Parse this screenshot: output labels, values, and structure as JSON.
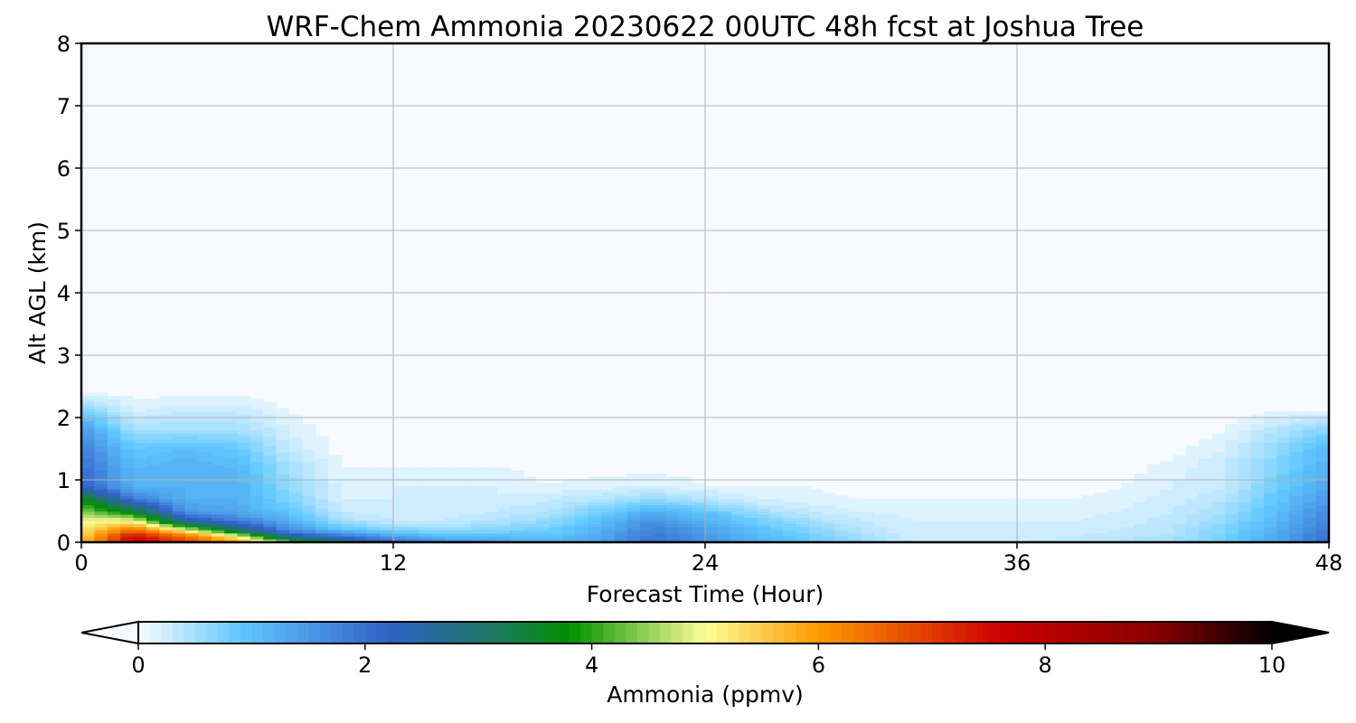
{
  "chart_data": {
    "type": "heatmap",
    "title": "WRF-Chem Ammonia  20230622 00UTC 48h fcst at Joshua Tree",
    "xlabel": "Forecast Time (Hour)",
    "ylabel": "Alt AGL (km)",
    "xlim": [
      0,
      48
    ],
    "ylim": [
      0,
      8
    ],
    "xticks": [
      "0",
      "12",
      "24",
      "36",
      "48"
    ],
    "yticks": [
      "0",
      "1",
      "2",
      "3",
      "4",
      "5",
      "6",
      "7",
      "8"
    ],
    "grid": true,
    "times": [
      0,
      2,
      4,
      6,
      8,
      10,
      12,
      14,
      16,
      18,
      20,
      22,
      24,
      26,
      28,
      30,
      32,
      34,
      36,
      38,
      40,
      42,
      44,
      46,
      48
    ],
    "altitudes": [
      0,
      0.1,
      0.2,
      0.35,
      0.5,
      0.7,
      0.9,
      1.2,
      1.5,
      1.8,
      2.1,
      2.4,
      8
    ],
    "values_by_time": [
      [
        5.6,
        5.4,
        5.2,
        5.0,
        4.5,
        3.8,
        2.2,
        2.0,
        1.8,
        1.5,
        0.8,
        0.1,
        0
      ],
      [
        7.8,
        7.5,
        6.5,
        5.0,
        3.5,
        1.8,
        1.2,
        1.1,
        0.9,
        0.5,
        0.2,
        0.05,
        0
      ],
      [
        7.0,
        6.5,
        5.0,
        2.5,
        1.5,
        1.2,
        1.2,
        1.2,
        1.0,
        0.5,
        0.3,
        0.05,
        0
      ],
      [
        6.0,
        5.0,
        3.0,
        1.8,
        1.3,
        1.2,
        1.2,
        1.1,
        0.9,
        0.5,
        0.3,
        0.05,
        0
      ],
      [
        4.5,
        2.5,
        1.6,
        1.2,
        0.9,
        0.7,
        0.6,
        0.5,
        0.3,
        0.2,
        0.1,
        0,
        0
      ],
      [
        3.2,
        2.0,
        1.0,
        0.5,
        0.3,
        0.2,
        0.15,
        0.1,
        0.05,
        0,
        0,
        0,
        0
      ],
      [
        2.2,
        1.4,
        0.7,
        0.3,
        0.2,
        0.2,
        0.2,
        0.1,
        0.05,
        0,
        0,
        0,
        0
      ],
      [
        1.8,
        1.0,
        0.6,
        0.3,
        0.25,
        0.2,
        0.2,
        0.1,
        0.05,
        0,
        0,
        0,
        0
      ],
      [
        1.5,
        1.0,
        0.7,
        0.4,
        0.3,
        0.2,
        0.2,
        0.1,
        0,
        0,
        0,
        0,
        0
      ],
      [
        1.2,
        1.0,
        0.8,
        0.6,
        0.4,
        0.3,
        0.1,
        0.05,
        0,
        0,
        0,
        0,
        0
      ],
      [
        1.4,
        1.3,
        1.2,
        1.0,
        0.8,
        0.4,
        0.15,
        0.05,
        0,
        0,
        0,
        0,
        0
      ],
      [
        2.0,
        1.9,
        1.8,
        1.6,
        1.2,
        0.6,
        0.2,
        0.05,
        0,
        0,
        0,
        0,
        0
      ],
      [
        1.6,
        1.5,
        1.4,
        1.2,
        0.9,
        0.4,
        0.1,
        0.05,
        0,
        0,
        0,
        0,
        0
      ],
      [
        1.2,
        1.1,
        1.0,
        0.8,
        0.5,
        0.2,
        0.1,
        0,
        0,
        0,
        0,
        0,
        0
      ],
      [
        0.9,
        0.8,
        0.7,
        0.5,
        0.3,
        0.15,
        0.1,
        0,
        0,
        0,
        0,
        0,
        0
      ],
      [
        0.6,
        0.5,
        0.4,
        0.3,
        0.2,
        0.1,
        0.05,
        0,
        0,
        0,
        0,
        0,
        0
      ],
      [
        0.3,
        0.25,
        0.2,
        0.2,
        0.15,
        0.1,
        0.05,
        0,
        0,
        0,
        0,
        0,
        0
      ],
      [
        0.3,
        0.25,
        0.2,
        0.2,
        0.15,
        0.1,
        0.05,
        0,
        0,
        0,
        0,
        0,
        0
      ],
      [
        0.3,
        0.25,
        0.2,
        0.2,
        0.15,
        0.1,
        0.05,
        0,
        0,
        0,
        0,
        0,
        0
      ],
      [
        0.35,
        0.3,
        0.25,
        0.2,
        0.15,
        0.1,
        0.05,
        0,
        0,
        0,
        0,
        0,
        0
      ],
      [
        0.4,
        0.35,
        0.3,
        0.25,
        0.2,
        0.15,
        0.1,
        0.05,
        0,
        0,
        0,
        0,
        0
      ],
      [
        0.5,
        0.45,
        0.4,
        0.35,
        0.3,
        0.25,
        0.2,
        0.15,
        0.05,
        0,
        0,
        0,
        0
      ],
      [
        0.8,
        0.8,
        0.7,
        0.6,
        0.5,
        0.4,
        0.3,
        0.3,
        0.2,
        0.1,
        0,
        0,
        0
      ],
      [
        1.3,
        1.3,
        1.2,
        1.1,
        1.0,
        0.9,
        0.8,
        0.7,
        0.6,
        0.4,
        0.1,
        0,
        0
      ],
      [
        2.0,
        2.0,
        1.9,
        1.8,
        1.7,
        1.5,
        1.3,
        1.2,
        1.1,
        0.7,
        0.1,
        0,
        0
      ]
    ],
    "colorbar": {
      "label": "Ammonia  (ppmv)",
      "range": [
        0,
        10
      ],
      "ticks": [
        "0",
        "2",
        "4",
        "6",
        "8",
        "10"
      ],
      "extend": "both",
      "levels_step": 0.1
    },
    "colormap": [
      [
        0,
        "#f7fbff"
      ],
      [
        0.9,
        "#60c8ff"
      ],
      [
        2.2,
        "#3060c8"
      ],
      [
        3.2,
        "#1a7a58"
      ],
      [
        3.8,
        "#009000"
      ],
      [
        4.4,
        "#80c850"
      ],
      [
        5.0,
        "#fdfd96"
      ],
      [
        6.0,
        "#ff9900"
      ],
      [
        7.6,
        "#cc0000"
      ],
      [
        9.0,
        "#880000"
      ],
      [
        10,
        "#000000"
      ]
    ]
  }
}
